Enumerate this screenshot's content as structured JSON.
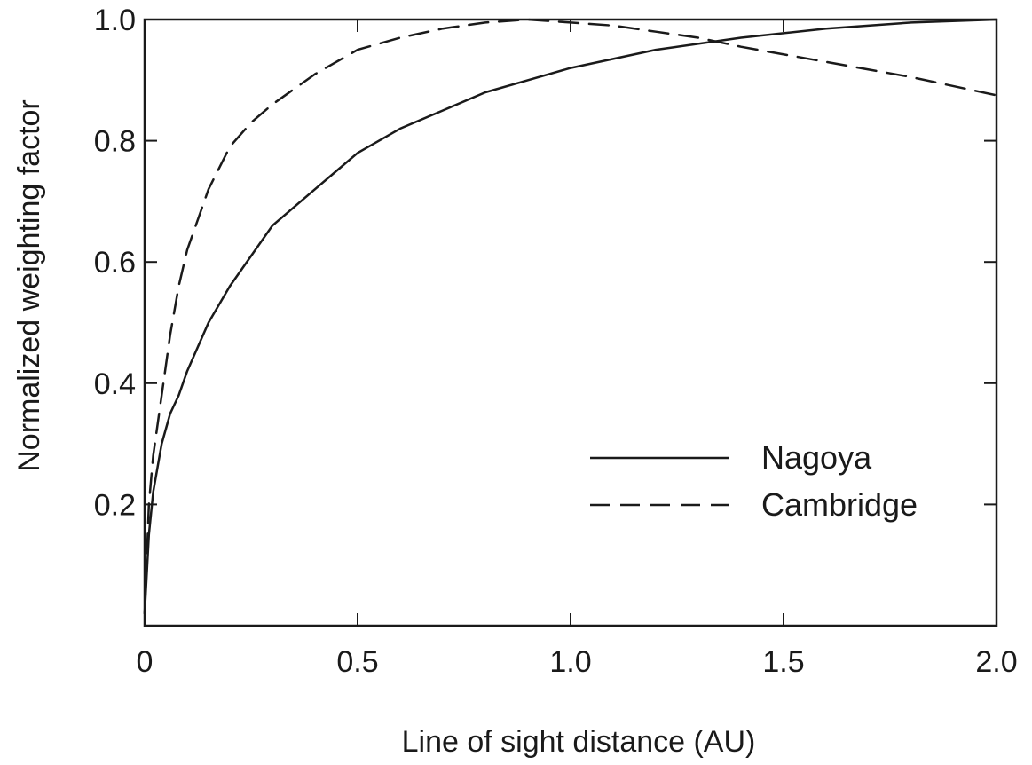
{
  "chart_data": {
    "type": "line",
    "title": "",
    "xlabel": "Line of sight  distance (AU)",
    "ylabel": "Normalized weighting factor",
    "xlim": [
      0,
      2.0
    ],
    "ylim": [
      0,
      1.0
    ],
    "x_ticks": [
      {
        "value": 0,
        "label": "0"
      },
      {
        "value": 0.5,
        "label": "0.5"
      },
      {
        "value": 1.0,
        "label": "1.0"
      },
      {
        "value": 1.5,
        "label": "1.5"
      },
      {
        "value": 2.0,
        "label": "2.0"
      }
    ],
    "y_ticks": [
      {
        "value": 0.2,
        "label": "0.2"
      },
      {
        "value": 0.4,
        "label": "0.4"
      },
      {
        "value": 0.6,
        "label": "0.6"
      },
      {
        "value": 0.8,
        "label": "0.8"
      },
      {
        "value": 1.0,
        "label": "1.0"
      }
    ],
    "grid": false,
    "legend_position": "lower-right",
    "series": [
      {
        "name": "Nagoya",
        "style": "solid",
        "color": "#1a1a1a",
        "points": [
          [
            0.0,
            0.02
          ],
          [
            0.01,
            0.15
          ],
          [
            0.02,
            0.22
          ],
          [
            0.04,
            0.3
          ],
          [
            0.06,
            0.35
          ],
          [
            0.08,
            0.38
          ],
          [
            0.1,
            0.42
          ],
          [
            0.15,
            0.5
          ],
          [
            0.2,
            0.56
          ],
          [
            0.25,
            0.61
          ],
          [
            0.3,
            0.66
          ],
          [
            0.35,
            0.69
          ],
          [
            0.4,
            0.72
          ],
          [
            0.5,
            0.78
          ],
          [
            0.6,
            0.82
          ],
          [
            0.7,
            0.85
          ],
          [
            0.8,
            0.88
          ],
          [
            0.9,
            0.9
          ],
          [
            1.0,
            0.92
          ],
          [
            1.2,
            0.95
          ],
          [
            1.4,
            0.97
          ],
          [
            1.6,
            0.985
          ],
          [
            1.8,
            0.995
          ],
          [
            2.0,
            1.0
          ]
        ]
      },
      {
        "name": "Cambridge",
        "style": "dashed",
        "color": "#1a1a1a",
        "points": [
          [
            0.0,
            0.02
          ],
          [
            0.01,
            0.2
          ],
          [
            0.02,
            0.28
          ],
          [
            0.04,
            0.38
          ],
          [
            0.06,
            0.48
          ],
          [
            0.08,
            0.56
          ],
          [
            0.1,
            0.62
          ],
          [
            0.15,
            0.72
          ],
          [
            0.2,
            0.79
          ],
          [
            0.25,
            0.83
          ],
          [
            0.3,
            0.86
          ],
          [
            0.4,
            0.91
          ],
          [
            0.5,
            0.95
          ],
          [
            0.6,
            0.97
          ],
          [
            0.7,
            0.985
          ],
          [
            0.8,
            0.995
          ],
          [
            0.9,
            1.0
          ],
          [
            1.0,
            0.995
          ],
          [
            1.1,
            0.99
          ],
          [
            1.2,
            0.98
          ],
          [
            1.3,
            0.97
          ],
          [
            1.4,
            0.955
          ],
          [
            1.6,
            0.93
          ],
          [
            1.8,
            0.905
          ],
          [
            2.0,
            0.875
          ]
        ]
      }
    ]
  }
}
